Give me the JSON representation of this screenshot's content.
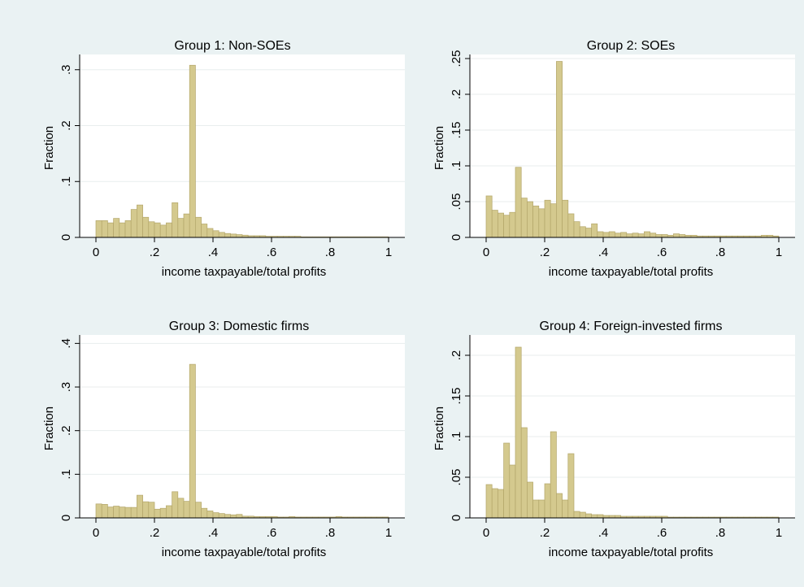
{
  "colors": {
    "background": "#eaf2f3",
    "plot_background": "#ffffff",
    "bar_fill": "#d4c98e",
    "bar_stroke": "#b3a66a",
    "gridline": "#e8eeee",
    "axis": "#000000"
  },
  "chart_data": [
    {
      "type": "bar",
      "title": "Group 1: Non-SOEs",
      "xlabel": "income taxpayable/total profits",
      "ylabel": "Fraction",
      "xlim": [
        0,
        1
      ],
      "ylim": [
        0,
        0.32
      ],
      "xticks": [
        0,
        0.2,
        0.4,
        0.6,
        0.8,
        1
      ],
      "xtick_labels": [
        "0",
        ".2",
        ".4",
        ".6",
        ".8",
        "1"
      ],
      "yticks": [
        0,
        0.1,
        0.2,
        0.3
      ],
      "ytick_labels": [
        "0",
        ".1",
        ".2",
        ".3"
      ],
      "grid": true,
      "bin_width": 0.02,
      "bin_starts": [
        0,
        0.02,
        0.04,
        0.06,
        0.08,
        0.1,
        0.12,
        0.14,
        0.16,
        0.18,
        0.2,
        0.22,
        0.24,
        0.26,
        0.28,
        0.3,
        0.32,
        0.34,
        0.36,
        0.38,
        0.4,
        0.42,
        0.44,
        0.46,
        0.48,
        0.5,
        0.52,
        0.54,
        0.56,
        0.58,
        0.6,
        0.62,
        0.64,
        0.66,
        0.68,
        0.7,
        0.72,
        0.74,
        0.76,
        0.78,
        0.8,
        0.82,
        0.84,
        0.86,
        0.88,
        0.9,
        0.92,
        0.94,
        0.96,
        0.98
      ],
      "values": [
        0.03,
        0.03,
        0.026,
        0.034,
        0.026,
        0.03,
        0.05,
        0.058,
        0.036,
        0.028,
        0.026,
        0.022,
        0.026,
        0.062,
        0.034,
        0.042,
        0.308,
        0.036,
        0.024,
        0.016,
        0.012,
        0.009,
        0.007,
        0.006,
        0.005,
        0.004,
        0.003,
        0.003,
        0.003,
        0.002,
        0.002,
        0.002,
        0.002,
        0.002,
        0.002,
        0.001,
        0.001,
        0.001,
        0.001,
        0.001,
        0.001,
        0.001,
        0.001,
        0.001,
        0.001,
        0.001,
        0.001,
        0.001,
        0.001,
        0.001
      ]
    },
    {
      "type": "bar",
      "title": "Group 2: SOEs",
      "xlabel": "income taxpayable/total profits",
      "ylabel": "Fraction",
      "xlim": [
        0,
        1
      ],
      "ylim": [
        0,
        0.25
      ],
      "xticks": [
        0,
        0.2,
        0.4,
        0.6,
        0.8,
        1
      ],
      "xtick_labels": [
        "0",
        ".2",
        ".4",
        ".6",
        ".8",
        "1"
      ],
      "yticks": [
        0,
        0.05,
        0.1,
        0.15,
        0.2,
        0.25
      ],
      "ytick_labels": [
        "0",
        ".05",
        ".1",
        ".15",
        ".2",
        ".25"
      ],
      "grid": true,
      "bin_width": 0.02,
      "bin_starts": [
        0,
        0.02,
        0.04,
        0.06,
        0.08,
        0.1,
        0.12,
        0.14,
        0.16,
        0.18,
        0.2,
        0.22,
        0.24,
        0.26,
        0.28,
        0.3,
        0.32,
        0.34,
        0.36,
        0.38,
        0.4,
        0.42,
        0.44,
        0.46,
        0.48,
        0.5,
        0.52,
        0.54,
        0.56,
        0.58,
        0.6,
        0.62,
        0.64,
        0.66,
        0.68,
        0.7,
        0.72,
        0.74,
        0.76,
        0.78,
        0.8,
        0.82,
        0.84,
        0.86,
        0.88,
        0.9,
        0.92,
        0.94,
        0.96,
        0.98
      ],
      "values": [
        0.058,
        0.038,
        0.034,
        0.031,
        0.035,
        0.098,
        0.055,
        0.05,
        0.044,
        0.04,
        0.052,
        0.047,
        0.246,
        0.052,
        0.033,
        0.022,
        0.015,
        0.013,
        0.019,
        0.008,
        0.007,
        0.008,
        0.006,
        0.007,
        0.005,
        0.006,
        0.005,
        0.008,
        0.006,
        0.004,
        0.004,
        0.003,
        0.005,
        0.004,
        0.003,
        0.003,
        0.002,
        0.002,
        0.002,
        0.002,
        0.002,
        0.002,
        0.002,
        0.002,
        0.002,
        0.002,
        0.002,
        0.003,
        0.003,
        0.002
      ]
    },
    {
      "type": "bar",
      "title": "Group 3: Domestic firms",
      "xlabel": "income taxpayable/total profits",
      "ylabel": "Fraction",
      "xlim": [
        0,
        1
      ],
      "ylim": [
        0,
        0.41
      ],
      "xticks": [
        0,
        0.2,
        0.4,
        0.6,
        0.8,
        1
      ],
      "xtick_labels": [
        "0",
        ".2",
        ".4",
        ".6",
        ".8",
        "1"
      ],
      "yticks": [
        0,
        0.1,
        0.2,
        0.3,
        0.4
      ],
      "ytick_labels": [
        "0",
        ".1",
        ".2",
        ".3",
        ".4"
      ],
      "grid": true,
      "bin_width": 0.02,
      "bin_starts": [
        0,
        0.02,
        0.04,
        0.06,
        0.08,
        0.1,
        0.12,
        0.14,
        0.16,
        0.18,
        0.2,
        0.22,
        0.24,
        0.26,
        0.28,
        0.3,
        0.32,
        0.34,
        0.36,
        0.38,
        0.4,
        0.42,
        0.44,
        0.46,
        0.48,
        0.5,
        0.52,
        0.54,
        0.56,
        0.58,
        0.6,
        0.62,
        0.64,
        0.66,
        0.68,
        0.7,
        0.72,
        0.74,
        0.76,
        0.78,
        0.8,
        0.82,
        0.84,
        0.86,
        0.88,
        0.9,
        0.92,
        0.94,
        0.96,
        0.98
      ],
      "values": [
        0.032,
        0.031,
        0.025,
        0.027,
        0.025,
        0.024,
        0.024,
        0.052,
        0.037,
        0.036,
        0.02,
        0.022,
        0.028,
        0.06,
        0.045,
        0.038,
        0.352,
        0.036,
        0.022,
        0.016,
        0.012,
        0.01,
        0.008,
        0.007,
        0.008,
        0.004,
        0.004,
        0.003,
        0.003,
        0.003,
        0.003,
        0.002,
        0.002,
        0.003,
        0.002,
        0.002,
        0.002,
        0.002,
        0.002,
        0.002,
        0.002,
        0.003,
        0.002,
        0.002,
        0.002,
        0.002,
        0.002,
        0.002,
        0.002,
        0.002
      ]
    },
    {
      "type": "bar",
      "title": "Group 4: Foreign-invested firms",
      "xlabel": "income taxpayable/total profits",
      "ylabel": "Fraction",
      "xlim": [
        0,
        1
      ],
      "ylim": [
        0,
        0.22
      ],
      "xticks": [
        0,
        0.2,
        0.4,
        0.6,
        0.8,
        1
      ],
      "xtick_labels": [
        "0",
        ".2",
        ".4",
        ".6",
        ".8",
        "1"
      ],
      "yticks": [
        0,
        0.05,
        0.1,
        0.15,
        0.2
      ],
      "ytick_labels": [
        "0",
        ".05",
        ".1",
        ".15",
        ".2"
      ],
      "grid": true,
      "bin_width": 0.02,
      "bin_starts": [
        0,
        0.02,
        0.04,
        0.06,
        0.08,
        0.1,
        0.12,
        0.14,
        0.16,
        0.18,
        0.2,
        0.22,
        0.24,
        0.26,
        0.28,
        0.3,
        0.32,
        0.34,
        0.36,
        0.38,
        0.4,
        0.42,
        0.44,
        0.46,
        0.48,
        0.5,
        0.52,
        0.54,
        0.56,
        0.58,
        0.6,
        0.62,
        0.64,
        0.66,
        0.68,
        0.7,
        0.72,
        0.74,
        0.76,
        0.78,
        0.8,
        0.82,
        0.84,
        0.86,
        0.88,
        0.9,
        0.92,
        0.94,
        0.96,
        0.98
      ],
      "values": [
        0.041,
        0.036,
        0.035,
        0.092,
        0.065,
        0.21,
        0.111,
        0.044,
        0.022,
        0.022,
        0.042,
        0.106,
        0.03,
        0.022,
        0.079,
        0.008,
        0.007,
        0.005,
        0.004,
        0.004,
        0.003,
        0.003,
        0.003,
        0.002,
        0.002,
        0.002,
        0.002,
        0.002,
        0.002,
        0.002,
        0.002,
        0.001,
        0.001,
        0.001,
        0.001,
        0.001,
        0.001,
        0.001,
        0.001,
        0.001,
        0.001,
        0.001,
        0.001,
        0.001,
        0.001,
        0.001,
        0.001,
        0.001,
        0.001,
        0.001
      ]
    }
  ]
}
